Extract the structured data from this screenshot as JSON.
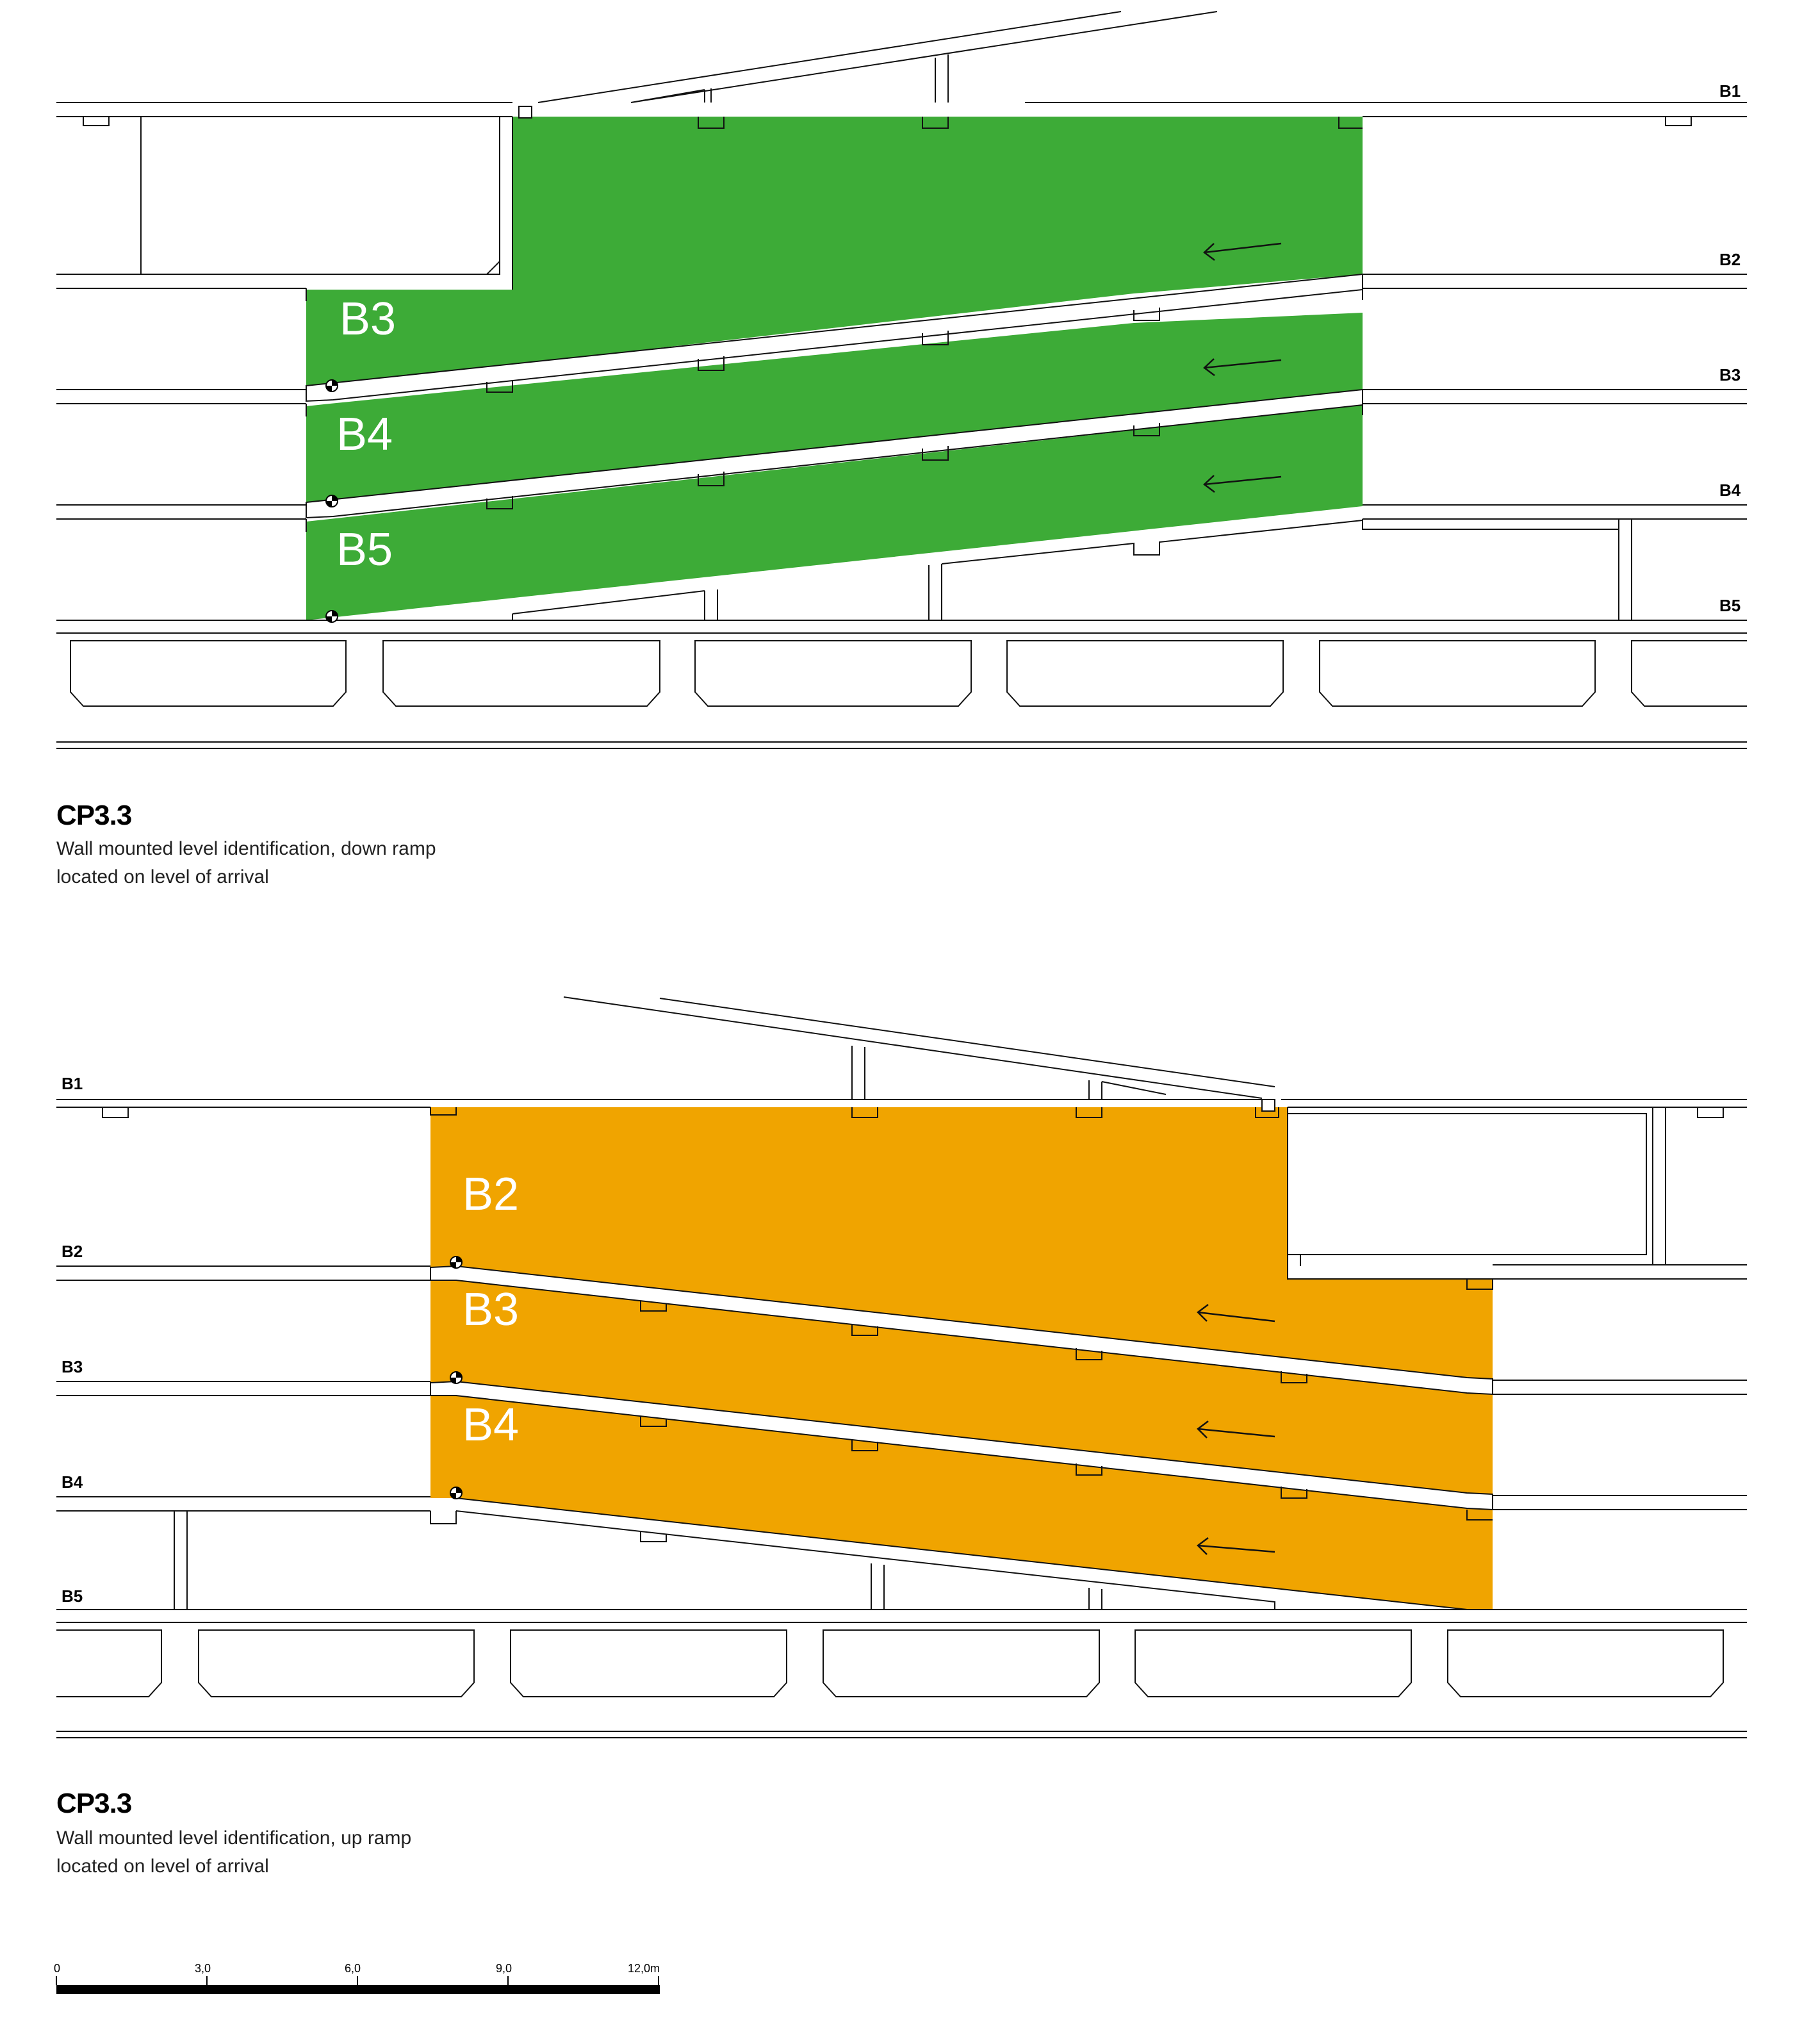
{
  "colors": {
    "down_ramp_fill": "#3dab37",
    "up_ramp_fill": "#f0a400",
    "line": "#111111",
    "label_text": "#ffffff"
  },
  "diagram_top": {
    "levels": [
      "B1",
      "B2",
      "B3",
      "B4",
      "B5"
    ],
    "ramp_labels": [
      "B3",
      "B4",
      "B5"
    ],
    "caption": {
      "title": "CP3.3",
      "line1": "Wall mounted level identification, down ramp",
      "line2": "located on level of arrival"
    }
  },
  "diagram_bottom": {
    "levels": [
      "B1",
      "B2",
      "B3",
      "B4",
      "B5"
    ],
    "ramp_labels": [
      "B2",
      "B3",
      "B4"
    ],
    "caption": {
      "title": "CP3.3",
      "line1": "Wall mounted level identification, up ramp",
      "line2": "located on level of arrival"
    }
  },
  "scale_bar": {
    "ticks": [
      "0",
      "3,0",
      "6,0",
      "9,0",
      "12,0m"
    ]
  }
}
